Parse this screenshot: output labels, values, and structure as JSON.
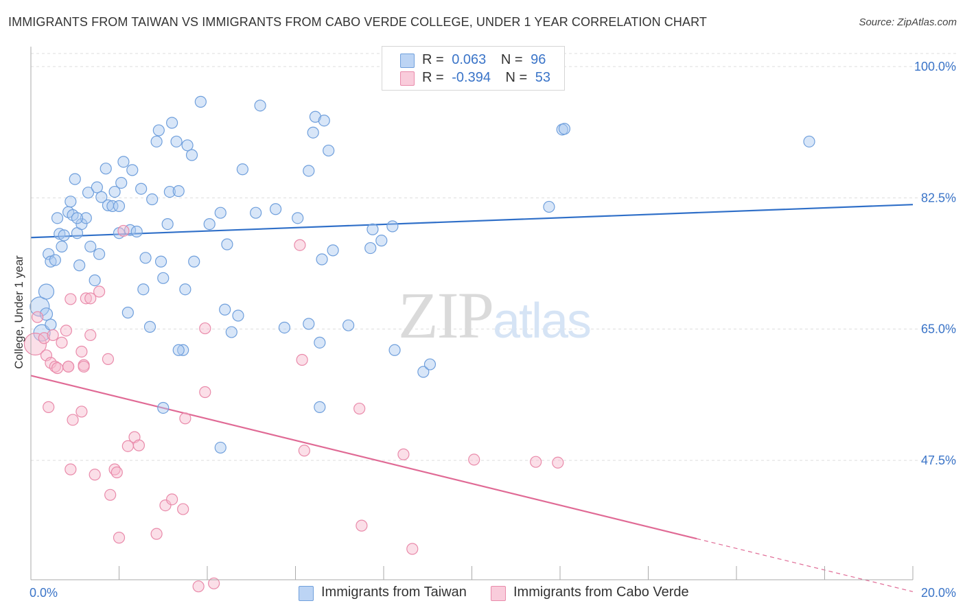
{
  "title": "IMMIGRANTS FROM TAIWAN VS IMMIGRANTS FROM CABO VERDE COLLEGE, UNDER 1 YEAR CORRELATION CHART",
  "source": "Source: ZipAtlas.com",
  "watermark": "ZIPatlas",
  "legend": {
    "rows": [
      {
        "r_label": "R =",
        "r_value": "0.063",
        "n_label": "N =",
        "n_value": "96",
        "color": "#a9c8f0"
      },
      {
        "r_label": "R =",
        "r_value": "-0.394",
        "n_label": "N =",
        "n_value": "53",
        "color": "#f6b7cb"
      }
    ]
  },
  "bottom_legend": [
    "Immigrants from Taiwan",
    "Immigrants from Cabo Verde"
  ],
  "colors": {
    "taiwan_fill": "#a9c8f0",
    "taiwan_stroke": "#6f9fdc",
    "taiwan_line": "#2f6fc8",
    "cabo_fill": "#f6b7cb",
    "cabo_stroke": "#e98aaa",
    "cabo_line": "#e06a95",
    "axis_text": "#3a74c8",
    "grid": "#dddddd"
  },
  "chart_data": {
    "type": "scatter",
    "ylabel": "College, Under 1 year",
    "xlim": [
      0,
      20
    ],
    "ylim": [
      29.5,
      102
    ],
    "y_ticks": [
      {
        "value": 100,
        "label": "100.0%"
      },
      {
        "value": 82.5,
        "label": "82.5%"
      },
      {
        "value": 65,
        "label": "65.0%"
      },
      {
        "value": 47.5,
        "label": "47.5%"
      }
    ],
    "x_tick_labels": {
      "min": "0.0%",
      "max": "20.0%"
    },
    "series": [
      {
        "name": "Immigrants from Taiwan",
        "trend": {
          "x0": 0,
          "y0": 77.2,
          "x1": 20,
          "y1": 81.6,
          "solid_until": 20
        },
        "points": [
          [
            0.2,
            68.0,
            14
          ],
          [
            0.25,
            64.5,
            12
          ],
          [
            0.35,
            70.0,
            11
          ],
          [
            0.35,
            67.0,
            9
          ],
          [
            0.4,
            75.0,
            8
          ],
          [
            0.45,
            74.0,
            8
          ],
          [
            0.55,
            74.2,
            8
          ],
          [
            0.6,
            79.8,
            8
          ],
          [
            0.65,
            77.7,
            8
          ],
          [
            0.7,
            76.0,
            8
          ],
          [
            0.75,
            77.5,
            8
          ],
          [
            0.85,
            80.6,
            8
          ],
          [
            0.9,
            82.0,
            8
          ],
          [
            0.95,
            80.2,
            8
          ],
          [
            1.0,
            85.0,
            8
          ],
          [
            1.05,
            77.8,
            8
          ],
          [
            1.1,
            73.5,
            8
          ],
          [
            1.15,
            79.0,
            8
          ],
          [
            1.25,
            79.8,
            8
          ],
          [
            1.3,
            83.2,
            8
          ],
          [
            1.35,
            76.0,
            8
          ],
          [
            1.45,
            71.5,
            8
          ],
          [
            1.5,
            83.9,
            8
          ],
          [
            1.55,
            75.0,
            8
          ],
          [
            1.6,
            82.6,
            8
          ],
          [
            1.7,
            86.4,
            8
          ],
          [
            1.75,
            81.5,
            8
          ],
          [
            1.85,
            81.4,
            8
          ],
          [
            1.9,
            83.3,
            8
          ],
          [
            2.0,
            77.8,
            8
          ],
          [
            2.05,
            84.5,
            8
          ],
          [
            2.1,
            87.3,
            8
          ],
          [
            2.2,
            67.2,
            8
          ],
          [
            2.25,
            78.2,
            8
          ],
          [
            2.3,
            86.2,
            8
          ],
          [
            2.4,
            78.0,
            8
          ],
          [
            2.5,
            83.7,
            8
          ],
          [
            2.55,
            70.3,
            8
          ],
          [
            2.6,
            74.5,
            8
          ],
          [
            2.7,
            65.3,
            8
          ],
          [
            2.75,
            82.3,
            8
          ],
          [
            2.85,
            90.0,
            8
          ],
          [
            2.9,
            91.5,
            8
          ],
          [
            2.95,
            74.0,
            8
          ],
          [
            3.0,
            71.8,
            8
          ],
          [
            3.1,
            79.0,
            8
          ],
          [
            3.15,
            83.3,
            8
          ],
          [
            3.2,
            92.5,
            8
          ],
          [
            3.3,
            90.0,
            8
          ],
          [
            3.35,
            83.4,
            8
          ],
          [
            3.45,
            62.2,
            8
          ],
          [
            3.5,
            70.3,
            8
          ],
          [
            3.55,
            89.5,
            8
          ],
          [
            3.65,
            88.2,
            8
          ],
          [
            3.7,
            74.0,
            8
          ],
          [
            3.85,
            95.3,
            8
          ],
          [
            4.05,
            79.0,
            8
          ],
          [
            4.3,
            80.5,
            8
          ],
          [
            4.4,
            67.6,
            8
          ],
          [
            4.45,
            76.3,
            8
          ],
          [
            4.55,
            64.6,
            8
          ],
          [
            4.7,
            66.8,
            8
          ],
          [
            4.8,
            86.3,
            8
          ],
          [
            5.1,
            80.5,
            8
          ],
          [
            5.2,
            94.8,
            8
          ],
          [
            5.55,
            81.0,
            8
          ],
          [
            5.75,
            65.2,
            8
          ],
          [
            6.05,
            79.8,
            8
          ],
          [
            6.3,
            65.7,
            8
          ],
          [
            6.3,
            86.1,
            8
          ],
          [
            6.4,
            91.2,
            8
          ],
          [
            6.45,
            93.3,
            8
          ],
          [
            6.55,
            63.2,
            8
          ],
          [
            6.65,
            92.8,
            8
          ],
          [
            6.75,
            88.8,
            8
          ],
          [
            6.85,
            75.5,
            8
          ],
          [
            7.2,
            65.5,
            8
          ],
          [
            7.7,
            75.8,
            8
          ],
          [
            7.75,
            78.3,
            8
          ],
          [
            7.95,
            76.8,
            8
          ],
          [
            8.2,
            78.7,
            8
          ],
          [
            8.25,
            62.2,
            8
          ],
          [
            8.9,
            59.3,
            8
          ],
          [
            9.05,
            60.3,
            8
          ],
          [
            11.75,
            81.3,
            8
          ],
          [
            12.05,
            91.6,
            8
          ],
          [
            12.1,
            91.7,
            8
          ],
          [
            17.65,
            90.0,
            8
          ],
          [
            3.0,
            54.5,
            8
          ],
          [
            4.3,
            49.2,
            8
          ],
          [
            6.55,
            54.6,
            8
          ],
          [
            6.6,
            74.3,
            8
          ],
          [
            3.35,
            62.2,
            8
          ],
          [
            0.45,
            65.6,
            8
          ],
          [
            1.05,
            79.8,
            8
          ],
          [
            2.0,
            81.4,
            8
          ]
        ]
      },
      {
        "name": "Immigrants from Cabo Verde",
        "trend": {
          "x0": 0,
          "y0": 58.8,
          "x1": 20,
          "y1": 30.0,
          "solid_until": 15.1
        },
        "points": [
          [
            0.1,
            63.0,
            16
          ],
          [
            0.15,
            66.6,
            8
          ],
          [
            0.3,
            63.8,
            8
          ],
          [
            0.35,
            61.5,
            8
          ],
          [
            0.45,
            60.5,
            8
          ],
          [
            0.4,
            54.6,
            8
          ],
          [
            0.5,
            64.2,
            8
          ],
          [
            0.55,
            60.0,
            8
          ],
          [
            0.6,
            59.8,
            8
          ],
          [
            0.7,
            63.2,
            8
          ],
          [
            0.8,
            64.8,
            8
          ],
          [
            0.85,
            60.0,
            8
          ],
          [
            0.9,
            69.0,
            8
          ],
          [
            0.9,
            46.3,
            8
          ],
          [
            0.95,
            52.9,
            8
          ],
          [
            1.15,
            54.0,
            8
          ],
          [
            1.15,
            62.0,
            8
          ],
          [
            1.2,
            60.2,
            8
          ],
          [
            1.25,
            69.1,
            8
          ],
          [
            1.35,
            69.1,
            8
          ],
          [
            1.35,
            64.2,
            8
          ],
          [
            1.45,
            45.6,
            8
          ],
          [
            1.55,
            70.0,
            8
          ],
          [
            1.75,
            61.0,
            8
          ],
          [
            1.8,
            42.9,
            8
          ],
          [
            1.9,
            46.3,
            8
          ],
          [
            1.95,
            45.9,
            8
          ],
          [
            2.0,
            37.2,
            8
          ],
          [
            2.1,
            78.1,
            8
          ],
          [
            2.2,
            49.4,
            8
          ],
          [
            2.35,
            50.6,
            8
          ],
          [
            2.45,
            49.5,
            8
          ],
          [
            2.85,
            37.7,
            8
          ],
          [
            3.05,
            41.5,
            8
          ],
          [
            3.2,
            42.3,
            8
          ],
          [
            3.45,
            41.0,
            8
          ],
          [
            3.5,
            53.1,
            8
          ],
          [
            3.8,
            30.7,
            8
          ],
          [
            3.95,
            65.1,
            8
          ],
          [
            3.95,
            56.6,
            8
          ],
          [
            4.15,
            31.1,
            8
          ],
          [
            6.1,
            76.2,
            8
          ],
          [
            6.15,
            60.9,
            8
          ],
          [
            6.2,
            48.8,
            8
          ],
          [
            7.45,
            54.4,
            8
          ],
          [
            7.5,
            38.8,
            8
          ],
          [
            8.45,
            48.3,
            8
          ],
          [
            8.65,
            35.7,
            8
          ],
          [
            10.05,
            47.6,
            8
          ],
          [
            11.45,
            47.3,
            8
          ],
          [
            11.95,
            47.2,
            8
          ],
          [
            0.85,
            60.0,
            8
          ],
          [
            1.2,
            60.0,
            8
          ]
        ]
      }
    ]
  }
}
